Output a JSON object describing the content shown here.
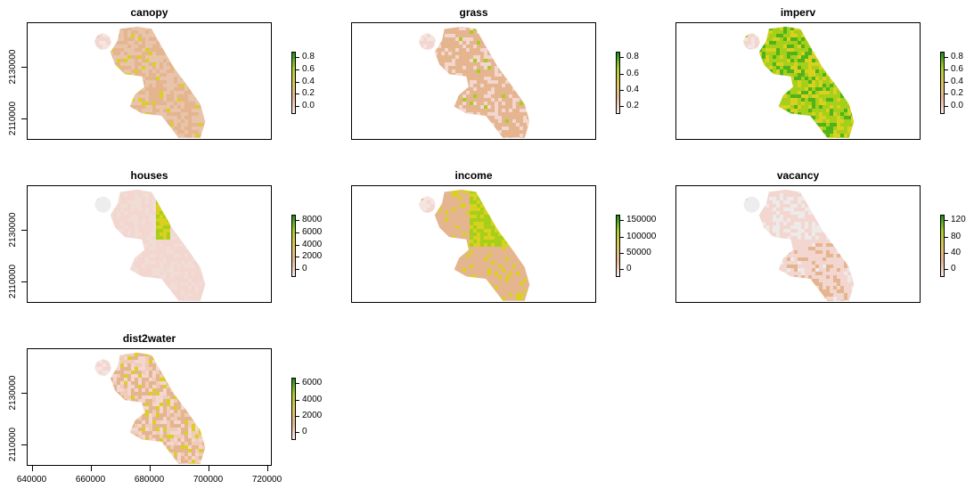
{
  "panels": [
    {
      "title": "canopy",
      "legend_ticks": [
        "0.8",
        "0.6",
        "0.4",
        "0.2",
        "0.0"
      ],
      "palette": "canopy",
      "show_yaxis": true,
      "show_xaxis": false
    },
    {
      "title": "grass",
      "legend_ticks": [
        "0.8",
        "0.6",
        "0.4",
        "0.2"
      ],
      "palette": "grass",
      "show_yaxis": false,
      "show_xaxis": false
    },
    {
      "title": "imperv",
      "legend_ticks": [
        "0.8",
        "0.6",
        "0.4",
        "0.2",
        "0.0"
      ],
      "palette": "imperv",
      "show_yaxis": false,
      "show_xaxis": false
    },
    {
      "title": "houses",
      "legend_ticks": [
        "8000",
        "6000",
        "4000",
        "2000",
        "0"
      ],
      "palette": "houses",
      "show_yaxis": true,
      "show_xaxis": false
    },
    {
      "title": "income",
      "legend_ticks": [
        "150000",
        "100000",
        "50000",
        "0"
      ],
      "palette": "income",
      "show_yaxis": false,
      "show_xaxis": false
    },
    {
      "title": "vacancy",
      "legend_ticks": [
        "120",
        "80",
        "40",
        "0"
      ],
      "palette": "vacancy",
      "show_yaxis": false,
      "show_xaxis": false
    },
    {
      "title": "dist2water",
      "legend_ticks": [
        "6000",
        "4000",
        "2000",
        "0"
      ],
      "palette": "dist2water",
      "show_yaxis": true,
      "show_xaxis": true
    }
  ],
  "y_ticks": [
    "2130000",
    "2110000"
  ],
  "x_ticks": [
    "640000",
    "660000",
    "680000",
    "700000",
    "720000"
  ],
  "colors": {
    "low": "#f2f2f2",
    "pink": "#f3d6cf",
    "tan": "#e5b58f",
    "yellow": "#d9d020",
    "lightgreen": "#a6cf1a",
    "green": "#4fb31a",
    "darkgreen": "#1e8b1e"
  }
}
